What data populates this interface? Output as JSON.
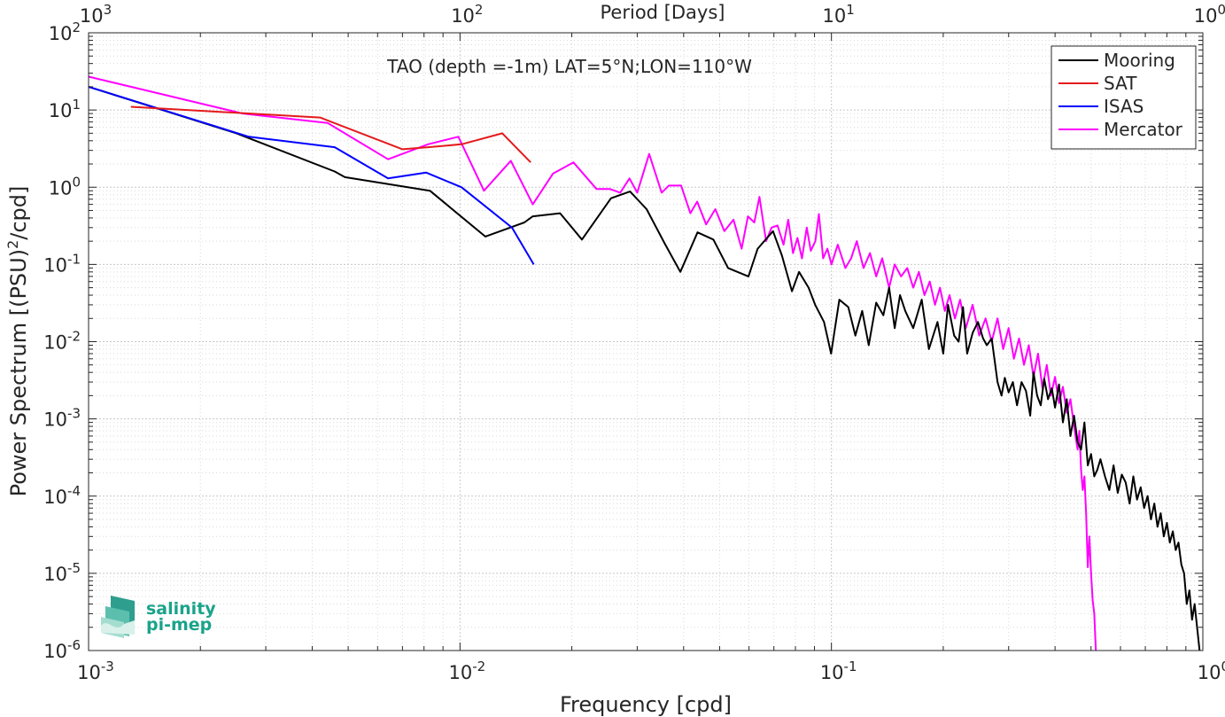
{
  "chart_data": {
    "type": "line",
    "title": "TAO (depth =-1m) LAT=5°N;LON=110°W",
    "xlabel": "Frequency [cpd]",
    "ylabel": "Power Spectrum [(PSU)^2/cpd]",
    "top_xlabel": "Period [Days]",
    "xscale": "log",
    "yscale": "log",
    "xlim": [
      0.001,
      1
    ],
    "ylim": [
      1e-06,
      100
    ],
    "grid": true,
    "minor_grid": true,
    "legend_position": "top-right",
    "x_ticks": [
      {
        "value": 0.001,
        "base": "10",
        "exp": "-3"
      },
      {
        "value": 0.01,
        "base": "10",
        "exp": "-2"
      },
      {
        "value": 0.1,
        "base": "10",
        "exp": "-1"
      },
      {
        "value": 1,
        "base": "10",
        "exp": "0"
      }
    ],
    "top_ticks": [
      {
        "value": 0.001,
        "base": "10",
        "exp": "3"
      },
      {
        "value": 0.01,
        "base": "10",
        "exp": "2"
      },
      {
        "value": 0.1,
        "base": "10",
        "exp": "1"
      },
      {
        "value": 1,
        "base": "10",
        "exp": "0"
      }
    ],
    "y_ticks": [
      {
        "value": 1e-06,
        "base": "10",
        "exp": "-6"
      },
      {
        "value": 1e-05,
        "base": "10",
        "exp": "-5"
      },
      {
        "value": 0.0001,
        "base": "10",
        "exp": "-4"
      },
      {
        "value": 0.001,
        "base": "10",
        "exp": "-3"
      },
      {
        "value": 0.01,
        "base": "10",
        "exp": "-2"
      },
      {
        "value": 0.1,
        "base": "10",
        "exp": "-1"
      },
      {
        "value": 1,
        "base": "10",
        "exp": "0"
      },
      {
        "value": 10,
        "base": "10",
        "exp": "1"
      },
      {
        "value": 100,
        "base": "10",
        "exp": "2"
      }
    ],
    "series": [
      {
        "name": "Mooring",
        "color": "#000000",
        "points": [
          [
            0.001,
            20
          ],
          [
            0.0025,
            5
          ],
          [
            0.0046,
            1.6
          ],
          [
            0.0049,
            1.35
          ],
          [
            0.0083,
            0.9
          ],
          [
            0.0117,
            0.23
          ],
          [
            0.0149,
            0.35
          ],
          [
            0.0157,
            0.42
          ],
          [
            0.0186,
            0.46
          ],
          [
            0.0213,
            0.21
          ],
          [
            0.0255,
            0.72
          ],
          [
            0.0287,
            0.88
          ],
          [
            0.0318,
            0.52
          ],
          [
            0.0355,
            0.19
          ],
          [
            0.0392,
            0.08
          ],
          [
            0.0436,
            0.26
          ],
          [
            0.0481,
            0.21
          ],
          [
            0.0527,
            0.09
          ],
          [
            0.0598,
            0.07
          ],
          [
            0.0633,
            0.16
          ],
          [
            0.0696,
            0.27
          ],
          [
            0.0736,
            0.13
          ],
          [
            0.0783,
            0.045
          ],
          [
            0.0818,
            0.08
          ],
          [
            0.0868,
            0.05
          ],
          [
            0.0904,
            0.03
          ],
          [
            0.0955,
            0.018
          ],
          [
            0.0998,
            0.007
          ],
          [
            0.105,
            0.035
          ],
          [
            0.111,
            0.028
          ],
          [
            0.116,
            0.012
          ],
          [
            0.121,
            0.025
          ],
          [
            0.126,
            0.009
          ],
          [
            0.132,
            0.032
          ],
          [
            0.138,
            0.022
          ],
          [
            0.143,
            0.05
          ],
          [
            0.148,
            0.015
          ],
          [
            0.153,
            0.04
          ],
          [
            0.158,
            0.025
          ],
          [
            0.166,
            0.015
          ],
          [
            0.175,
            0.035
          ],
          [
            0.183,
            0.008
          ],
          [
            0.193,
            0.018
          ],
          [
            0.2,
            0.007
          ],
          [
            0.206,
            0.03
          ],
          [
            0.214,
            0.012
          ],
          [
            0.22,
            0.01
          ],
          [
            0.226,
            0.028
          ],
          [
            0.232,
            0.007
          ],
          [
            0.24,
            0.013
          ],
          [
            0.248,
            0.018
          ],
          [
            0.256,
            0.011
          ],
          [
            0.262,
            0.009
          ],
          [
            0.27,
            0.011
          ],
          [
            0.28,
            0.003
          ],
          [
            0.287,
            0.002
          ],
          [
            0.293,
            0.0034
          ],
          [
            0.3,
            0.0022
          ],
          [
            0.308,
            0.003
          ],
          [
            0.316,
            0.0015
          ],
          [
            0.325,
            0.003
          ],
          [
            0.334,
            0.0023
          ],
          [
            0.343,
            0.0011
          ],
          [
            0.35,
            0.004
          ],
          [
            0.358,
            0.002
          ],
          [
            0.366,
            0.0015
          ],
          [
            0.374,
            0.0033
          ],
          [
            0.383,
            0.0018
          ],
          [
            0.392,
            0.0025
          ],
          [
            0.4,
            0.0014
          ],
          [
            0.41,
            0.0028
          ],
          [
            0.42,
            0.0009
          ],
          [
            0.43,
            0.0018
          ],
          [
            0.44,
            0.0006
          ],
          [
            0.45,
            0.0011
          ],
          [
            0.46,
            0.0005
          ],
          [
            0.47,
            0.0004
          ],
          [
            0.48,
            0.0009
          ],
          [
            0.49,
            0.00025
          ],
          [
            0.5,
            0.00035
          ],
          [
            0.51,
            0.00018
          ],
          [
            0.52,
            0.00022
          ],
          [
            0.53,
            0.0003
          ],
          [
            0.545,
            0.00018
          ],
          [
            0.56,
            0.00012
          ],
          [
            0.575,
            0.00025
          ],
          [
            0.59,
            0.00011
          ],
          [
            0.605,
            0.00019
          ],
          [
            0.62,
            0.00015
          ],
          [
            0.635,
            8e-05
          ],
          [
            0.65,
            0.00018
          ],
          [
            0.665,
            9e-05
          ],
          [
            0.68,
            0.00013
          ],
          [
            0.695,
            7e-05
          ],
          [
            0.71,
            0.0001
          ],
          [
            0.725,
            5e-05
          ],
          [
            0.74,
            8e-05
          ],
          [
            0.755,
            4e-05
          ],
          [
            0.77,
            6e-05
          ],
          [
            0.785,
            3e-05
          ],
          [
            0.8,
            4.5e-05
          ],
          [
            0.815,
            2.5e-05
          ],
          [
            0.83,
            3.5e-05
          ],
          [
            0.845,
            2e-05
          ],
          [
            0.86,
            2.5e-05
          ],
          [
            0.875,
            1.3e-05
          ],
          [
            0.89,
            1e-05
          ],
          [
            0.905,
            4e-06
          ],
          [
            0.92,
            6e-06
          ],
          [
            0.935,
            2.5e-06
          ],
          [
            0.95,
            4e-06
          ],
          [
            0.965,
            2e-06
          ],
          [
            0.98,
            1e-06
          ]
        ]
      },
      {
        "name": "SAT",
        "color": "#e41a1c",
        "points": [
          [
            0.0013,
            11
          ],
          [
            0.0042,
            8
          ],
          [
            0.007,
            3.1
          ],
          [
            0.0082,
            3.3
          ],
          [
            0.0101,
            3.6
          ],
          [
            0.013,
            5
          ],
          [
            0.0155,
            2.1
          ]
        ]
      },
      {
        "name": "ISAS",
        "color": "#0000ff",
        "points": [
          [
            0.001,
            20
          ],
          [
            0.0027,
            4.5
          ],
          [
            0.0046,
            3.3
          ],
          [
            0.0064,
            1.3
          ],
          [
            0.0081,
            1.55
          ],
          [
            0.0101,
            1
          ],
          [
            0.0138,
            0.3
          ],
          [
            0.0158,
            0.1
          ]
        ]
      },
      {
        "name": "Mercator",
        "color": "#ff00ff",
        "points": [
          [
            0.001,
            27
          ],
          [
            0.0026,
            9
          ],
          [
            0.0044,
            6.8
          ],
          [
            0.0064,
            2.3
          ],
          [
            0.0082,
            3.6
          ],
          [
            0.0099,
            4.5
          ],
          [
            0.0116,
            0.9
          ],
          [
            0.0137,
            2.2
          ],
          [
            0.0157,
            0.6
          ],
          [
            0.0178,
            1.5
          ],
          [
            0.0202,
            2.1
          ],
          [
            0.0233,
            0.95
          ],
          [
            0.0253,
            0.95
          ],
          [
            0.027,
            0.85
          ],
          [
            0.0286,
            1.3
          ],
          [
            0.03,
            0.85
          ],
          [
            0.0323,
            2.7
          ],
          [
            0.0349,
            0.85
          ],
          [
            0.0365,
            1.05
          ],
          [
            0.0394,
            1.05
          ],
          [
            0.0417,
            0.46
          ],
          [
            0.0435,
            0.65
          ],
          [
            0.046,
            0.33
          ],
          [
            0.0487,
            0.52
          ],
          [
            0.0515,
            0.27
          ],
          [
            0.0545,
            0.38
          ],
          [
            0.0573,
            0.16
          ],
          [
            0.0596,
            0.42
          ],
          [
            0.062,
            0.35
          ],
          [
            0.064,
            0.75
          ],
          [
            0.0667,
            0.2
          ],
          [
            0.069,
            0.3
          ],
          [
            0.0716,
            0.32
          ],
          [
            0.0743,
            0.18
          ],
          [
            0.0765,
            0.38
          ],
          [
            0.0788,
            0.14
          ],
          [
            0.081,
            0.22
          ],
          [
            0.0833,
            0.12
          ],
          [
            0.0858,
            0.3
          ],
          [
            0.088,
            0.15
          ],
          [
            0.0905,
            0.2
          ],
          [
            0.0925,
            0.45
          ],
          [
            0.095,
            0.12
          ],
          [
            0.0975,
            0.16
          ],
          [
            0.1,
            0.1
          ],
          [
            0.104,
            0.18
          ],
          [
            0.109,
            0.09
          ],
          [
            0.113,
            0.12
          ],
          [
            0.117,
            0.2
          ],
          [
            0.122,
            0.09
          ],
          [
            0.127,
            0.14
          ],
          [
            0.132,
            0.07
          ],
          [
            0.137,
            0.12
          ],
          [
            0.143,
            0.05
          ],
          [
            0.148,
            0.1
          ],
          [
            0.154,
            0.07
          ],
          [
            0.16,
            0.09
          ],
          [
            0.166,
            0.05
          ],
          [
            0.172,
            0.08
          ],
          [
            0.178,
            0.04
          ],
          [
            0.184,
            0.06
          ],
          [
            0.19,
            0.03
          ],
          [
            0.196,
            0.05
          ],
          [
            0.202,
            0.025
          ],
          [
            0.208,
            0.04
          ],
          [
            0.215,
            0.02
          ],
          [
            0.222,
            0.035
          ],
          [
            0.23,
            0.015
          ],
          [
            0.24,
            0.03
          ],
          [
            0.25,
            0.012
          ],
          [
            0.26,
            0.02
          ],
          [
            0.27,
            0.01
          ],
          [
            0.28,
            0.02
          ],
          [
            0.29,
            0.008
          ],
          [
            0.3,
            0.015
          ],
          [
            0.31,
            0.006
          ],
          [
            0.32,
            0.011
          ],
          [
            0.33,
            0.005
          ],
          [
            0.34,
            0.009
          ],
          [
            0.35,
            0.0035
          ],
          [
            0.36,
            0.007
          ],
          [
            0.37,
            0.0025
          ],
          [
            0.38,
            0.005
          ],
          [
            0.39,
            0.002
          ],
          [
            0.4,
            0.0035
          ],
          [
            0.41,
            0.0016
          ],
          [
            0.42,
            0.0026
          ],
          [
            0.43,
            0.0012
          ],
          [
            0.44,
            0.0018
          ],
          [
            0.45,
            0.0008
          ],
          [
            0.46,
            0.0004
          ],
          [
            0.465,
            0.0007
          ],
          [
            0.47,
            0.00022
          ],
          [
            0.475,
            0.00012
          ],
          [
            0.48,
            0.00018
          ],
          [
            0.485,
            6e-05
          ],
          [
            0.49,
            1.2e-05
          ],
          [
            0.495,
            3e-05
          ],
          [
            0.5,
            1e-05
          ],
          [
            0.505,
            4.5e-06
          ],
          [
            0.51,
            3e-06
          ],
          [
            0.515,
            1e-06
          ]
        ]
      }
    ]
  },
  "logo": {
    "line1": "salinity",
    "line2": "pi-mep",
    "color": "#1aa38a"
  }
}
